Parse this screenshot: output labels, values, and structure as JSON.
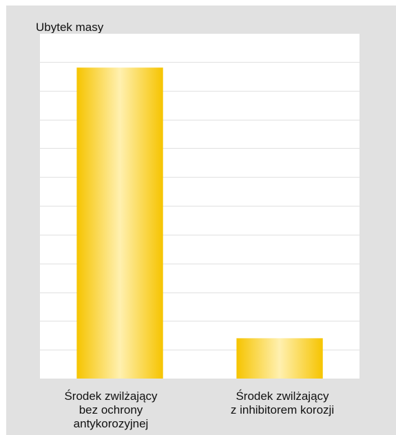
{
  "chart_data": {
    "type": "bar",
    "ylabel": "Ubytek masy",
    "xlabel": "",
    "categories": [
      [
        "Środek zwilżający",
        "bez ochrony",
        "antykorozyjnej"
      ],
      [
        "Środek zwilżający",
        "z inhibitorem korozji"
      ]
    ],
    "values": [
      10.8,
      1.4
    ],
    "ylim": [
      0,
      12
    ],
    "gridlines": 12,
    "y_tick_labels": false,
    "grid": true,
    "legend": "none",
    "colors": {
      "bar_edge": "#f6c400",
      "bar_center": "#fff0b0",
      "plot_bg": "#ffffff",
      "grid": "#e0e0e0",
      "panel_bg": "#e1e1e1"
    }
  }
}
